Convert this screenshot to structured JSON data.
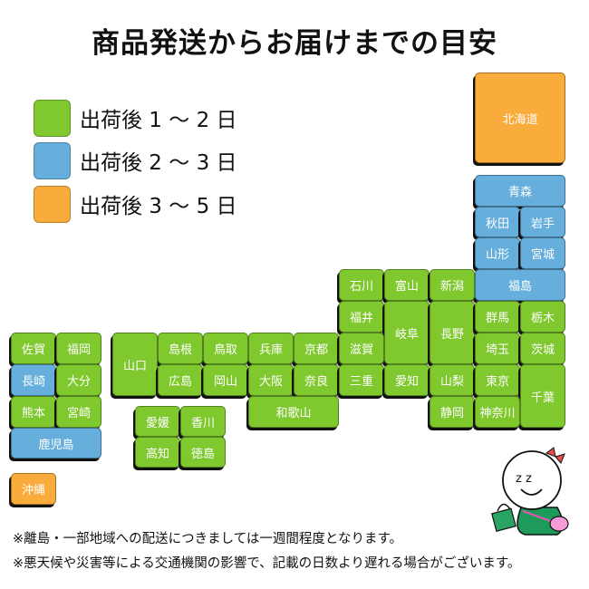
{
  "title": "商品発送からお届けまでの目安",
  "colors": {
    "zone1": "#7fc82e",
    "zone2": "#66aedb",
    "zone3": "#f9ab3b"
  },
  "legend": [
    {
      "zone": "zone1",
      "label": "出荷後 1 ～ 2 日"
    },
    {
      "zone": "zone2",
      "label": "出荷後 2 ～ 3 日"
    },
    {
      "zone": "zone3",
      "label": "出荷後 3 ～ 5 日"
    }
  ],
  "prefectures": [
    {
      "name": "北海道",
      "zone": "zone3"
    },
    {
      "name": "青森",
      "zone": "zone2"
    },
    {
      "name": "秋田",
      "zone": "zone2"
    },
    {
      "name": "岩手",
      "zone": "zone2"
    },
    {
      "name": "山形",
      "zone": "zone2"
    },
    {
      "name": "宮城",
      "zone": "zone2"
    },
    {
      "name": "福島",
      "zone": "zone2"
    },
    {
      "name": "石川",
      "zone": "zone1"
    },
    {
      "name": "富山",
      "zone": "zone1"
    },
    {
      "name": "新潟",
      "zone": "zone1"
    },
    {
      "name": "福井",
      "zone": "zone1"
    },
    {
      "name": "岐阜",
      "zone": "zone1"
    },
    {
      "name": "長野",
      "zone": "zone1"
    },
    {
      "name": "群馬",
      "zone": "zone1"
    },
    {
      "name": "栃木",
      "zone": "zone1"
    },
    {
      "name": "京都",
      "zone": "zone1"
    },
    {
      "name": "滋賀",
      "zone": "zone1"
    },
    {
      "name": "埼玉",
      "zone": "zone1"
    },
    {
      "name": "茨城",
      "zone": "zone1"
    },
    {
      "name": "兵庫",
      "zone": "zone1"
    },
    {
      "name": "鳥取",
      "zone": "zone1"
    },
    {
      "name": "島根",
      "zone": "zone1"
    },
    {
      "name": "山口",
      "zone": "zone1"
    },
    {
      "name": "広島",
      "zone": "zone1"
    },
    {
      "name": "岡山",
      "zone": "zone1"
    },
    {
      "name": "大阪",
      "zone": "zone1"
    },
    {
      "name": "奈良",
      "zone": "zone1"
    },
    {
      "name": "三重",
      "zone": "zone1"
    },
    {
      "name": "愛知",
      "zone": "zone1"
    },
    {
      "name": "山梨",
      "zone": "zone1"
    },
    {
      "name": "東京",
      "zone": "zone1"
    },
    {
      "name": "千葉",
      "zone": "zone1"
    },
    {
      "name": "和歌山",
      "zone": "zone1"
    },
    {
      "name": "静岡",
      "zone": "zone1"
    },
    {
      "name": "神奈川",
      "zone": "zone1"
    },
    {
      "name": "愛媛",
      "zone": "zone1"
    },
    {
      "name": "香川",
      "zone": "zone1"
    },
    {
      "name": "高知",
      "zone": "zone1"
    },
    {
      "name": "徳島",
      "zone": "zone1"
    },
    {
      "name": "佐賀",
      "zone": "zone1"
    },
    {
      "name": "福岡",
      "zone": "zone1"
    },
    {
      "name": "長崎",
      "zone": "zone2"
    },
    {
      "name": "大分",
      "zone": "zone1"
    },
    {
      "name": "熊本",
      "zone": "zone1"
    },
    {
      "name": "宮崎",
      "zone": "zone1"
    },
    {
      "name": "鹿児島",
      "zone": "zone2"
    },
    {
      "name": "沖縄",
      "zone": "zone3"
    }
  ],
  "notes": [
    "※離島・一部地域への配送につきましては一週間程度となります。",
    "※悪天候や災害等による交通機関の影響で、記載の日数より遅れる場合がございます。"
  ]
}
